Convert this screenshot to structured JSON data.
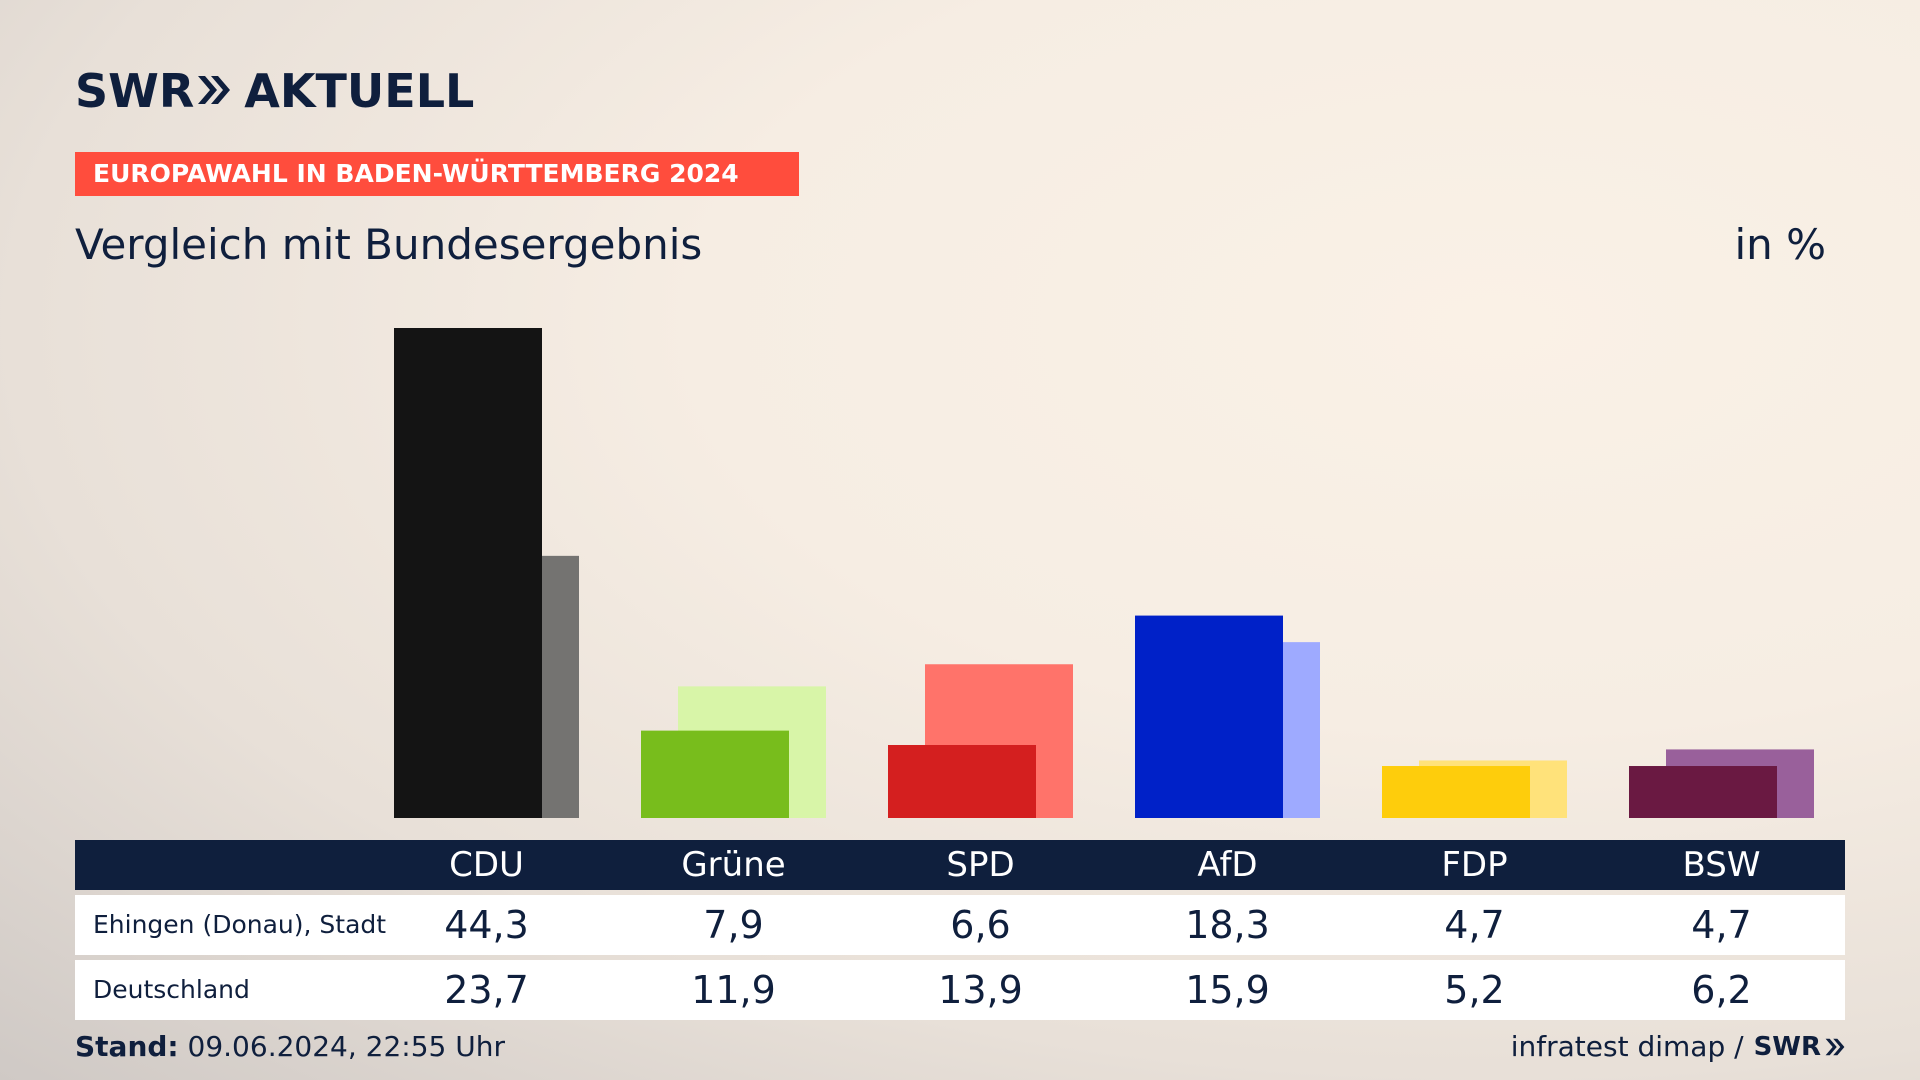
{
  "brand": {
    "logo_left": "SWR",
    "logo_right": "AKTUELL"
  },
  "tagline": "EUROPAWAHL IN BADEN-WÜRTTEMBERG 2024",
  "title": "Vergleich mit Bundesergebnis",
  "unit": "in %",
  "footer": {
    "stand_label": "Stand:",
    "stand_value": "09.06.2024, 22:55 Uhr",
    "source": "infratest dimap /",
    "source_logo": "SWR"
  },
  "table": {
    "parties": [
      "CDU",
      "Grüne",
      "SPD",
      "AfD",
      "FDP",
      "BSW"
    ],
    "rows": [
      {
        "label": "Ehingen (Donau), Stadt",
        "values": [
          "44,3",
          "7,9",
          "6,6",
          "18,3",
          "4,7",
          "4,7"
        ]
      },
      {
        "label": "Deutschland",
        "values": [
          "23,7",
          "11,9",
          "13,9",
          "15,9",
          "5,2",
          "6,2"
        ]
      }
    ]
  },
  "chart_data": {
    "type": "bar",
    "categories": [
      "CDU",
      "Grüne",
      "SPD",
      "AfD",
      "FDP",
      "BSW"
    ],
    "series": [
      {
        "name": "Ehingen (Donau), Stadt",
        "values": [
          44.3,
          7.9,
          6.6,
          18.3,
          4.7,
          4.7
        ],
        "colors": [
          "#141414",
          "#78bd1c",
          "#d41f1f",
          "#0021c8",
          "#fecd0c",
          "#6a1942"
        ]
      },
      {
        "name": "Deutschland",
        "values": [
          23.7,
          11.9,
          13.9,
          15.9,
          5.2,
          6.2
        ],
        "colors": [
          "#747371",
          "#d8f5a8",
          "#ff736a",
          "#9eaaff",
          "#ffe27a",
          "#99609b"
        ]
      }
    ],
    "ylim": [
      0,
      44.3
    ],
    "grid": false
  }
}
